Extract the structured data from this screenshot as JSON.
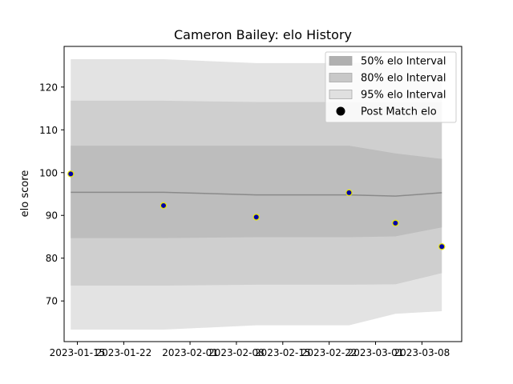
{
  "chart_data": {
    "type": "line",
    "title": "Cameron Bailey: elo History",
    "xlabel": "",
    "ylabel": "elo score",
    "x_ticks": [
      "2023-01-15",
      "2023-01-22",
      "2023-02-01",
      "2023-02-08",
      "2023-02-15",
      "2023-02-22",
      "2023-03-01",
      "2023-03-08"
    ],
    "y_ticks": [
      70,
      80,
      90,
      100,
      110,
      120
    ],
    "xlim": [
      "2023-01-13",
      "2023-03-14"
    ],
    "ylim": [
      60.5,
      129.5
    ],
    "grid": false,
    "legend_position": "top-right",
    "dates": [
      "2023-01-14",
      "2023-01-28",
      "2023-02-11",
      "2023-02-25",
      "2023-03-04",
      "2023-03-11"
    ],
    "mean": [
      95.4,
      95.4,
      94.8,
      94.8,
      94.5,
      95.3
    ],
    "bands": [
      {
        "name": "95% elo Interval",
        "color": "#e3e3e3",
        "upper": [
          126.5,
          126.5,
          125.6,
          125.6,
          125.6,
          125.6
        ],
        "lower": [
          63.3,
          63.3,
          64.3,
          64.3,
          67.0,
          67.6
        ]
      },
      {
        "name": "80% elo Interval",
        "color": "#cfcfcf",
        "upper": [
          116.8,
          116.8,
          116.5,
          116.5,
          116.5,
          116.5
        ],
        "lower": [
          73.6,
          73.6,
          73.8,
          73.8,
          73.9,
          76.5
        ]
      },
      {
        "name": "50% elo Interval",
        "color": "#bdbdbd",
        "upper": [
          106.3,
          106.3,
          106.3,
          106.3,
          104.5,
          103.2
        ],
        "lower": [
          84.7,
          84.7,
          84.9,
          84.9,
          85.1,
          87.2
        ]
      }
    ],
    "points": {
      "name": "Post Match elo",
      "color": "#0000aa",
      "edge_color": "#e6e600",
      "values": [
        99.7,
        92.3,
        89.6,
        95.3,
        88.2,
        82.7
      ]
    },
    "legend": [
      {
        "label": "50% elo Interval",
        "kind": "patch",
        "color": "#b0b0b0"
      },
      {
        "label": "80% elo Interval",
        "kind": "patch",
        "color": "#c8c8c8"
      },
      {
        "label": "95% elo Interval",
        "kind": "patch",
        "color": "#e0e0e0"
      },
      {
        "label": "Post Match elo",
        "kind": "marker",
        "color": "#000000"
      }
    ]
  }
}
